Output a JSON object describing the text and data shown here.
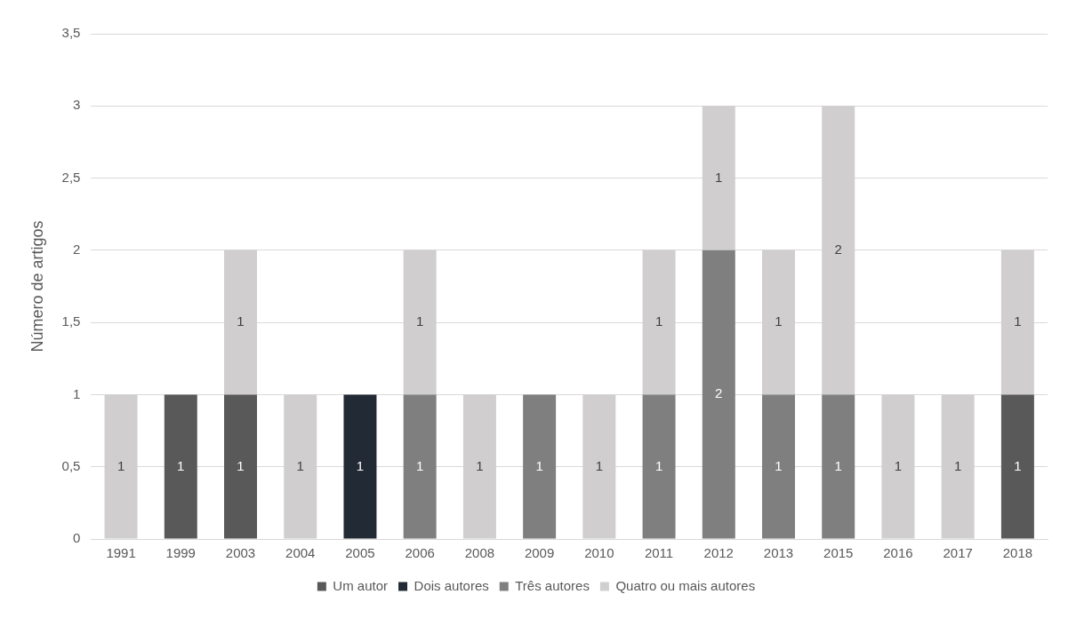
{
  "chart_data": {
    "type": "bar",
    "stacked": true,
    "ylabel": "Número de artigos",
    "categories": [
      "1991",
      "1999",
      "2003",
      "2004",
      "2005",
      "2006",
      "2008",
      "2009",
      "2010",
      "2011",
      "2012",
      "2013",
      "2015",
      "2016",
      "2017",
      "2018"
    ],
    "series": [
      {
        "name": "Um autor",
        "color": "#595959",
        "values": [
          null,
          1,
          1,
          null,
          null,
          null,
          null,
          null,
          null,
          null,
          null,
          null,
          null,
          null,
          null,
          1
        ]
      },
      {
        "name": "Dois autores",
        "color": "#222a35",
        "values": [
          null,
          null,
          null,
          null,
          1,
          null,
          null,
          null,
          null,
          null,
          null,
          null,
          null,
          null,
          null,
          null
        ]
      },
      {
        "name": "Três autores",
        "color": "#7f7f7f",
        "values": [
          null,
          null,
          null,
          null,
          null,
          1,
          null,
          1,
          null,
          1,
          2,
          1,
          1,
          null,
          null,
          null
        ]
      },
      {
        "name": "Quatro ou mais autores",
        "color": "#d0cece",
        "values": [
          1,
          null,
          1,
          1,
          null,
          1,
          1,
          null,
          1,
          1,
          1,
          1,
          2,
          1,
          1,
          1
        ]
      }
    ],
    "ylim": [
      0,
      3.5
    ],
    "yticks": [
      0,
      {
        "value": 0.5,
        "label": "0,5"
      },
      1,
      {
        "value": 1.5,
        "label": "1,5"
      },
      2,
      {
        "value": 2.5,
        "label": "2,5"
      },
      3,
      {
        "value": 3.5,
        "label": "3,5"
      }
    ],
    "grid": "y",
    "legend": "bottom",
    "data_labels": true
  }
}
